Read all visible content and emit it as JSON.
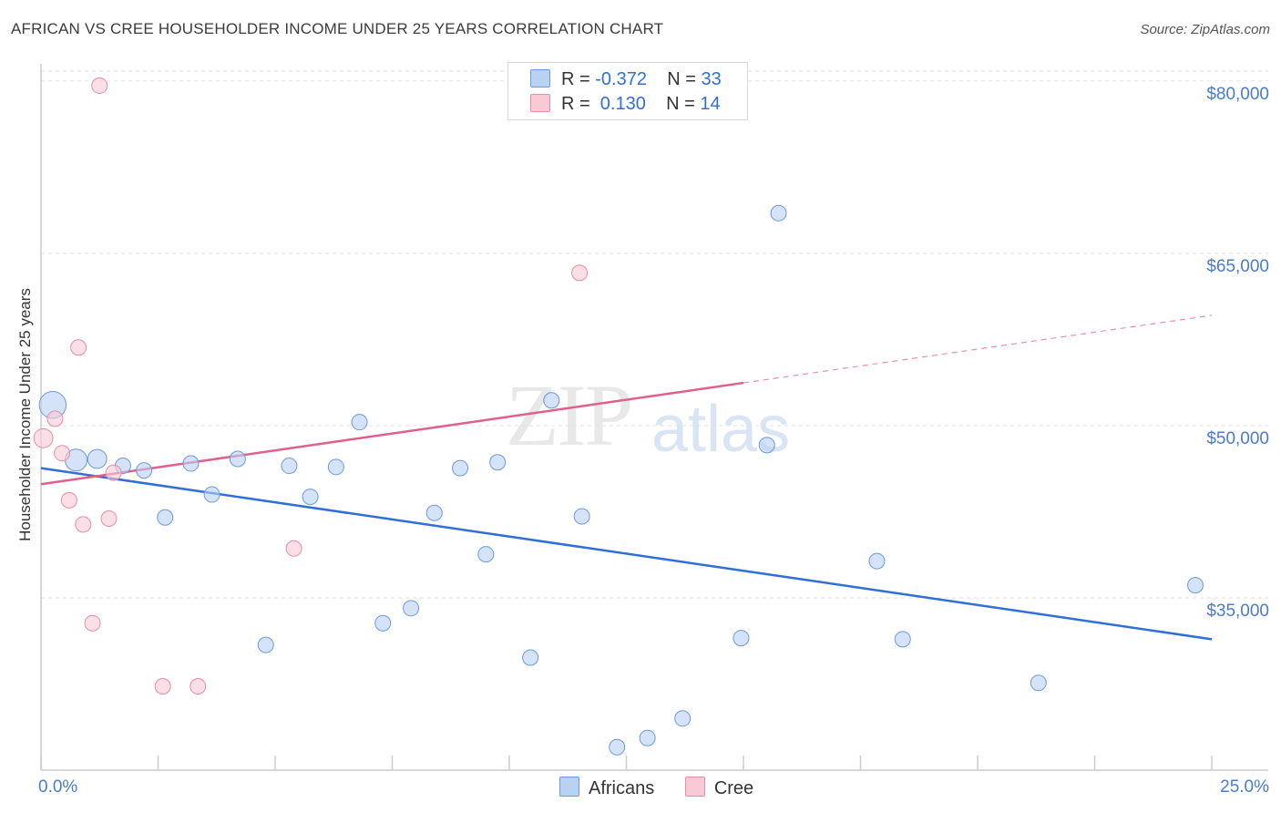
{
  "title": "AFRICAN VS CREE HOUSEHOLDER INCOME UNDER 25 YEARS CORRELATION CHART",
  "source": "Source: ZipAtlas.com",
  "watermark": {
    "zip": "ZIP",
    "atlas": "atlas"
  },
  "legend": {
    "rows": [
      {
        "label_r": "R = ",
        "r": "-0.372",
        "label_n": "N = ",
        "n": "33"
      },
      {
        "label_r": "R = ",
        "r": " 0.130",
        "label_n": "N = ",
        "n": "14"
      }
    ]
  },
  "bottom_legend": {
    "africans": "Africans",
    "cree": "Cree"
  },
  "chart_data": {
    "type": "scatter",
    "title": "AFRICAN VS CREE HOUSEHOLDER INCOME UNDER 25 YEARS CORRELATION CHART",
    "xlabel": "",
    "ylabel": "Householder Income Under 25 years",
    "xlim": [
      0,
      25
    ],
    "ylim": [
      20000,
      81500
    ],
    "x_tick_labels": [
      "0.0%",
      "25.0%"
    ],
    "y_ticks": [
      35000,
      50000,
      65000,
      80000
    ],
    "y_tick_labels": [
      "$35,000",
      "$50,000",
      "$65,000",
      "$80,000"
    ],
    "colors": {
      "africans_fill": "#b9d1f3",
      "africans_stroke": "#6b9ae0",
      "africans_line": "#2f6fd6",
      "cree_fill": "#f9c9d6",
      "cree_stroke": "#e88ca6",
      "cree_line": "#e0608a",
      "grid": "#e2e2e2",
      "axis": "#cccccc"
    },
    "series": [
      {
        "name": "Africans",
        "points": [
          {
            "x": 0.25,
            "y": 51800,
            "size": 3
          },
          {
            "x": 0.75,
            "y": 47000,
            "size": 2
          },
          {
            "x": 1.2,
            "y": 47100,
            "size": 1.5
          },
          {
            "x": 1.75,
            "y": 46500,
            "size": 1
          },
          {
            "x": 2.2,
            "y": 46100,
            "size": 1
          },
          {
            "x": 2.65,
            "y": 42000,
            "size": 1
          },
          {
            "x": 3.2,
            "y": 46700,
            "size": 1
          },
          {
            "x": 3.65,
            "y": 44000,
            "size": 1
          },
          {
            "x": 4.2,
            "y": 47100,
            "size": 1
          },
          {
            "x": 4.8,
            "y": 30900,
            "size": 1
          },
          {
            "x": 5.3,
            "y": 46500,
            "size": 1
          },
          {
            "x": 5.75,
            "y": 43800,
            "size": 1
          },
          {
            "x": 6.3,
            "y": 46400,
            "size": 1
          },
          {
            "x": 6.8,
            "y": 50300,
            "size": 1
          },
          {
            "x": 7.3,
            "y": 32800,
            "size": 1
          },
          {
            "x": 7.9,
            "y": 34100,
            "size": 1
          },
          {
            "x": 8.4,
            "y": 42400,
            "size": 1
          },
          {
            "x": 8.95,
            "y": 46300,
            "size": 1
          },
          {
            "x": 9.5,
            "y": 38800,
            "size": 1
          },
          {
            "x": 9.75,
            "y": 46800,
            "size": 1
          },
          {
            "x": 10.45,
            "y": 29800,
            "size": 1
          },
          {
            "x": 10.9,
            "y": 52200,
            "size": 1
          },
          {
            "x": 11.55,
            "y": 42100,
            "size": 1
          },
          {
            "x": 12.3,
            "y": 22000,
            "size": 1
          },
          {
            "x": 12.95,
            "y": 22800,
            "size": 1
          },
          {
            "x": 13.7,
            "y": 24500,
            "size": 1
          },
          {
            "x": 14.95,
            "y": 31500,
            "size": 1
          },
          {
            "x": 15.5,
            "y": 48300,
            "size": 1
          },
          {
            "x": 15.75,
            "y": 68500,
            "size": 1
          },
          {
            "x": 17.85,
            "y": 38200,
            "size": 1
          },
          {
            "x": 18.4,
            "y": 31400,
            "size": 1
          },
          {
            "x": 21.3,
            "y": 27600,
            "size": 1
          },
          {
            "x": 24.65,
            "y": 36100,
            "size": 1
          }
        ],
        "trend": {
          "x": [
            0,
            25
          ],
          "y": [
            46300,
            31400
          ],
          "dashed_from_x": null
        }
      },
      {
        "name": "Cree",
        "points": [
          {
            "x": 0.05,
            "y": 48900,
            "size": 1.5
          },
          {
            "x": 0.3,
            "y": 50600,
            "size": 1
          },
          {
            "x": 0.45,
            "y": 47600,
            "size": 1
          },
          {
            "x": 0.6,
            "y": 43500,
            "size": 1
          },
          {
            "x": 0.8,
            "y": 56800,
            "size": 1
          },
          {
            "x": 0.9,
            "y": 41400,
            "size": 1
          },
          {
            "x": 1.1,
            "y": 32800,
            "size": 1
          },
          {
            "x": 1.25,
            "y": 79600,
            "size": 1
          },
          {
            "x": 1.45,
            "y": 41900,
            "size": 1
          },
          {
            "x": 1.55,
            "y": 45900,
            "size": 1
          },
          {
            "x": 2.6,
            "y": 27300,
            "size": 1
          },
          {
            "x": 3.35,
            "y": 27300,
            "size": 1
          },
          {
            "x": 5.4,
            "y": 39300,
            "size": 1
          },
          {
            "x": 11.5,
            "y": 63300,
            "size": 1
          }
        ],
        "trend": {
          "x": [
            0,
            25
          ],
          "y": [
            44900,
            59600
          ],
          "dashed_from_x": 15
        }
      }
    ]
  }
}
